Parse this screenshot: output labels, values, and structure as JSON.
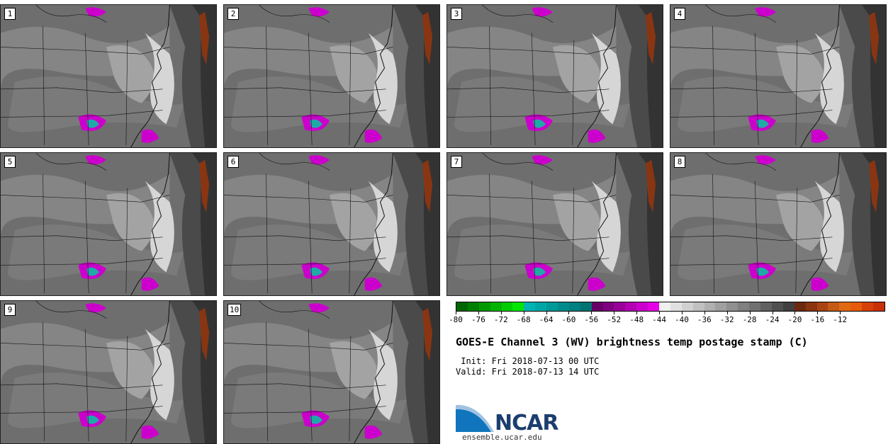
{
  "panels": [
    {
      "label": "1"
    },
    {
      "label": "2"
    },
    {
      "label": "3"
    },
    {
      "label": "4"
    },
    {
      "label": "5"
    },
    {
      "label": "6"
    },
    {
      "label": "7"
    },
    {
      "label": "8"
    },
    {
      "label": "9"
    },
    {
      "label": "10"
    }
  ],
  "colorbar": {
    "tick_labels": [
      "-80",
      "-76",
      "-72",
      "-68",
      "-64",
      "-60",
      "-56",
      "-52",
      "-48",
      "-44",
      "-40",
      "-36",
      "-32",
      "-28",
      "-24",
      "-20",
      "-16",
      "-12"
    ],
    "colors": [
      "#006600",
      "#007f00",
      "#009900",
      "#00b300",
      "#00cc00",
      "#00e600",
      "#00b3b3",
      "#00a6a6",
      "#009999",
      "#008c8c",
      "#008080",
      "#007373",
      "#660066",
      "#800080",
      "#99009a",
      "#b300b3",
      "#cc00cc",
      "#e600e6",
      "#f0f0f0",
      "#e0e0e0",
      "#d0d0d0",
      "#c0c0c0",
      "#b0b0b0",
      "#a0a0a0",
      "#909090",
      "#808080",
      "#707070",
      "#606060",
      "#505050",
      "#404040",
      "#6b2a10",
      "#8a3512",
      "#a84414",
      "#c45a14",
      "#e06a14",
      "#e65c0a",
      "#d8400a",
      "#c83008"
    ]
  },
  "title": "GOES-E Channel 3 (WV) brightness temp postage stamp (C)",
  "init": " Init: Fri 2018-07-13 00 UTC",
  "valid": "Valid: Fri 2018-07-13 14 UTC",
  "logo": {
    "text": "NCAR",
    "colors": {
      "blue": "#1075bc",
      "navy": "#1b3e6e"
    }
  },
  "site": "ensemble.ucar.edu"
}
